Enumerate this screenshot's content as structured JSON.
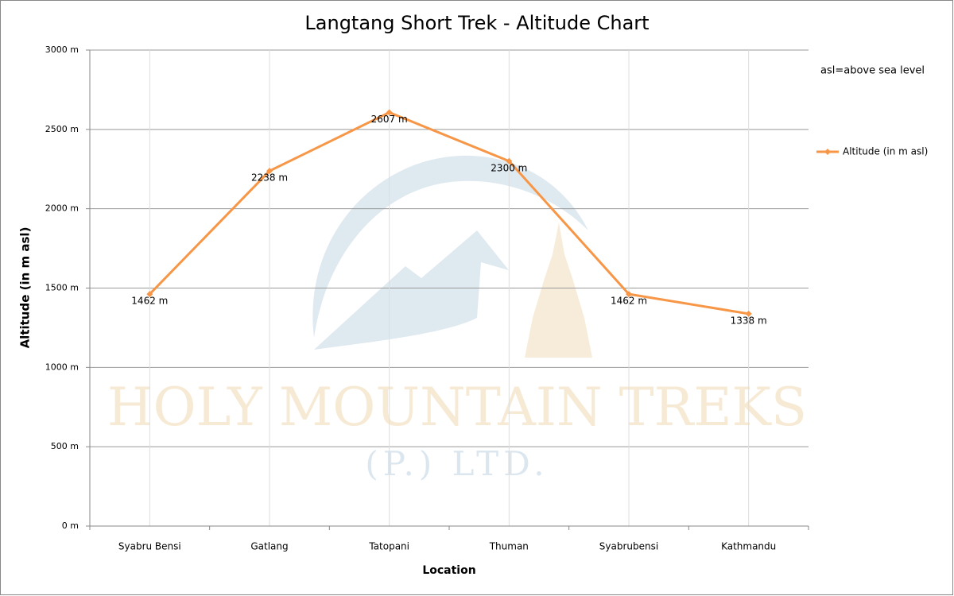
{
  "chart_data": {
    "type": "line",
    "title": "Langtang Short Trek - Altitude Chart",
    "x_label": "Location",
    "y_label": "Altitude (in m asl)",
    "annotation": "asl=above sea level",
    "watermark": [
      "HOLY MOUNTAIN TREKS",
      "(P.) LTD."
    ],
    "categories": [
      "Syabru Bensi",
      "Gatlang",
      "Tatopani",
      "Thuman",
      "Syabrubensi",
      "Kathmandu"
    ],
    "series": [
      {
        "name": "Altitude (in  m asl)",
        "color": "#f79646",
        "values": [
          1462,
          2238,
          2607,
          2300,
          1462,
          1338
        ],
        "value_labels": [
          "1462 m",
          "2238 m",
          "2607 m",
          "2300 m",
          "1462 m",
          "1338 m"
        ]
      }
    ],
    "ylim": [
      0,
      3000
    ],
    "yticks": [
      {
        "value": 0,
        "label": "0 m"
      },
      {
        "value": 500,
        "label": "500 m"
      },
      {
        "value": 1000,
        "label": "1000 m"
      },
      {
        "value": 1500,
        "label": "1500 m"
      },
      {
        "value": 2000,
        "label": "2000 m"
      },
      {
        "value": 2500,
        "label": "2500 m"
      },
      {
        "value": 3000,
        "label": "3000 m"
      }
    ],
    "grid": true,
    "legend": "right"
  }
}
